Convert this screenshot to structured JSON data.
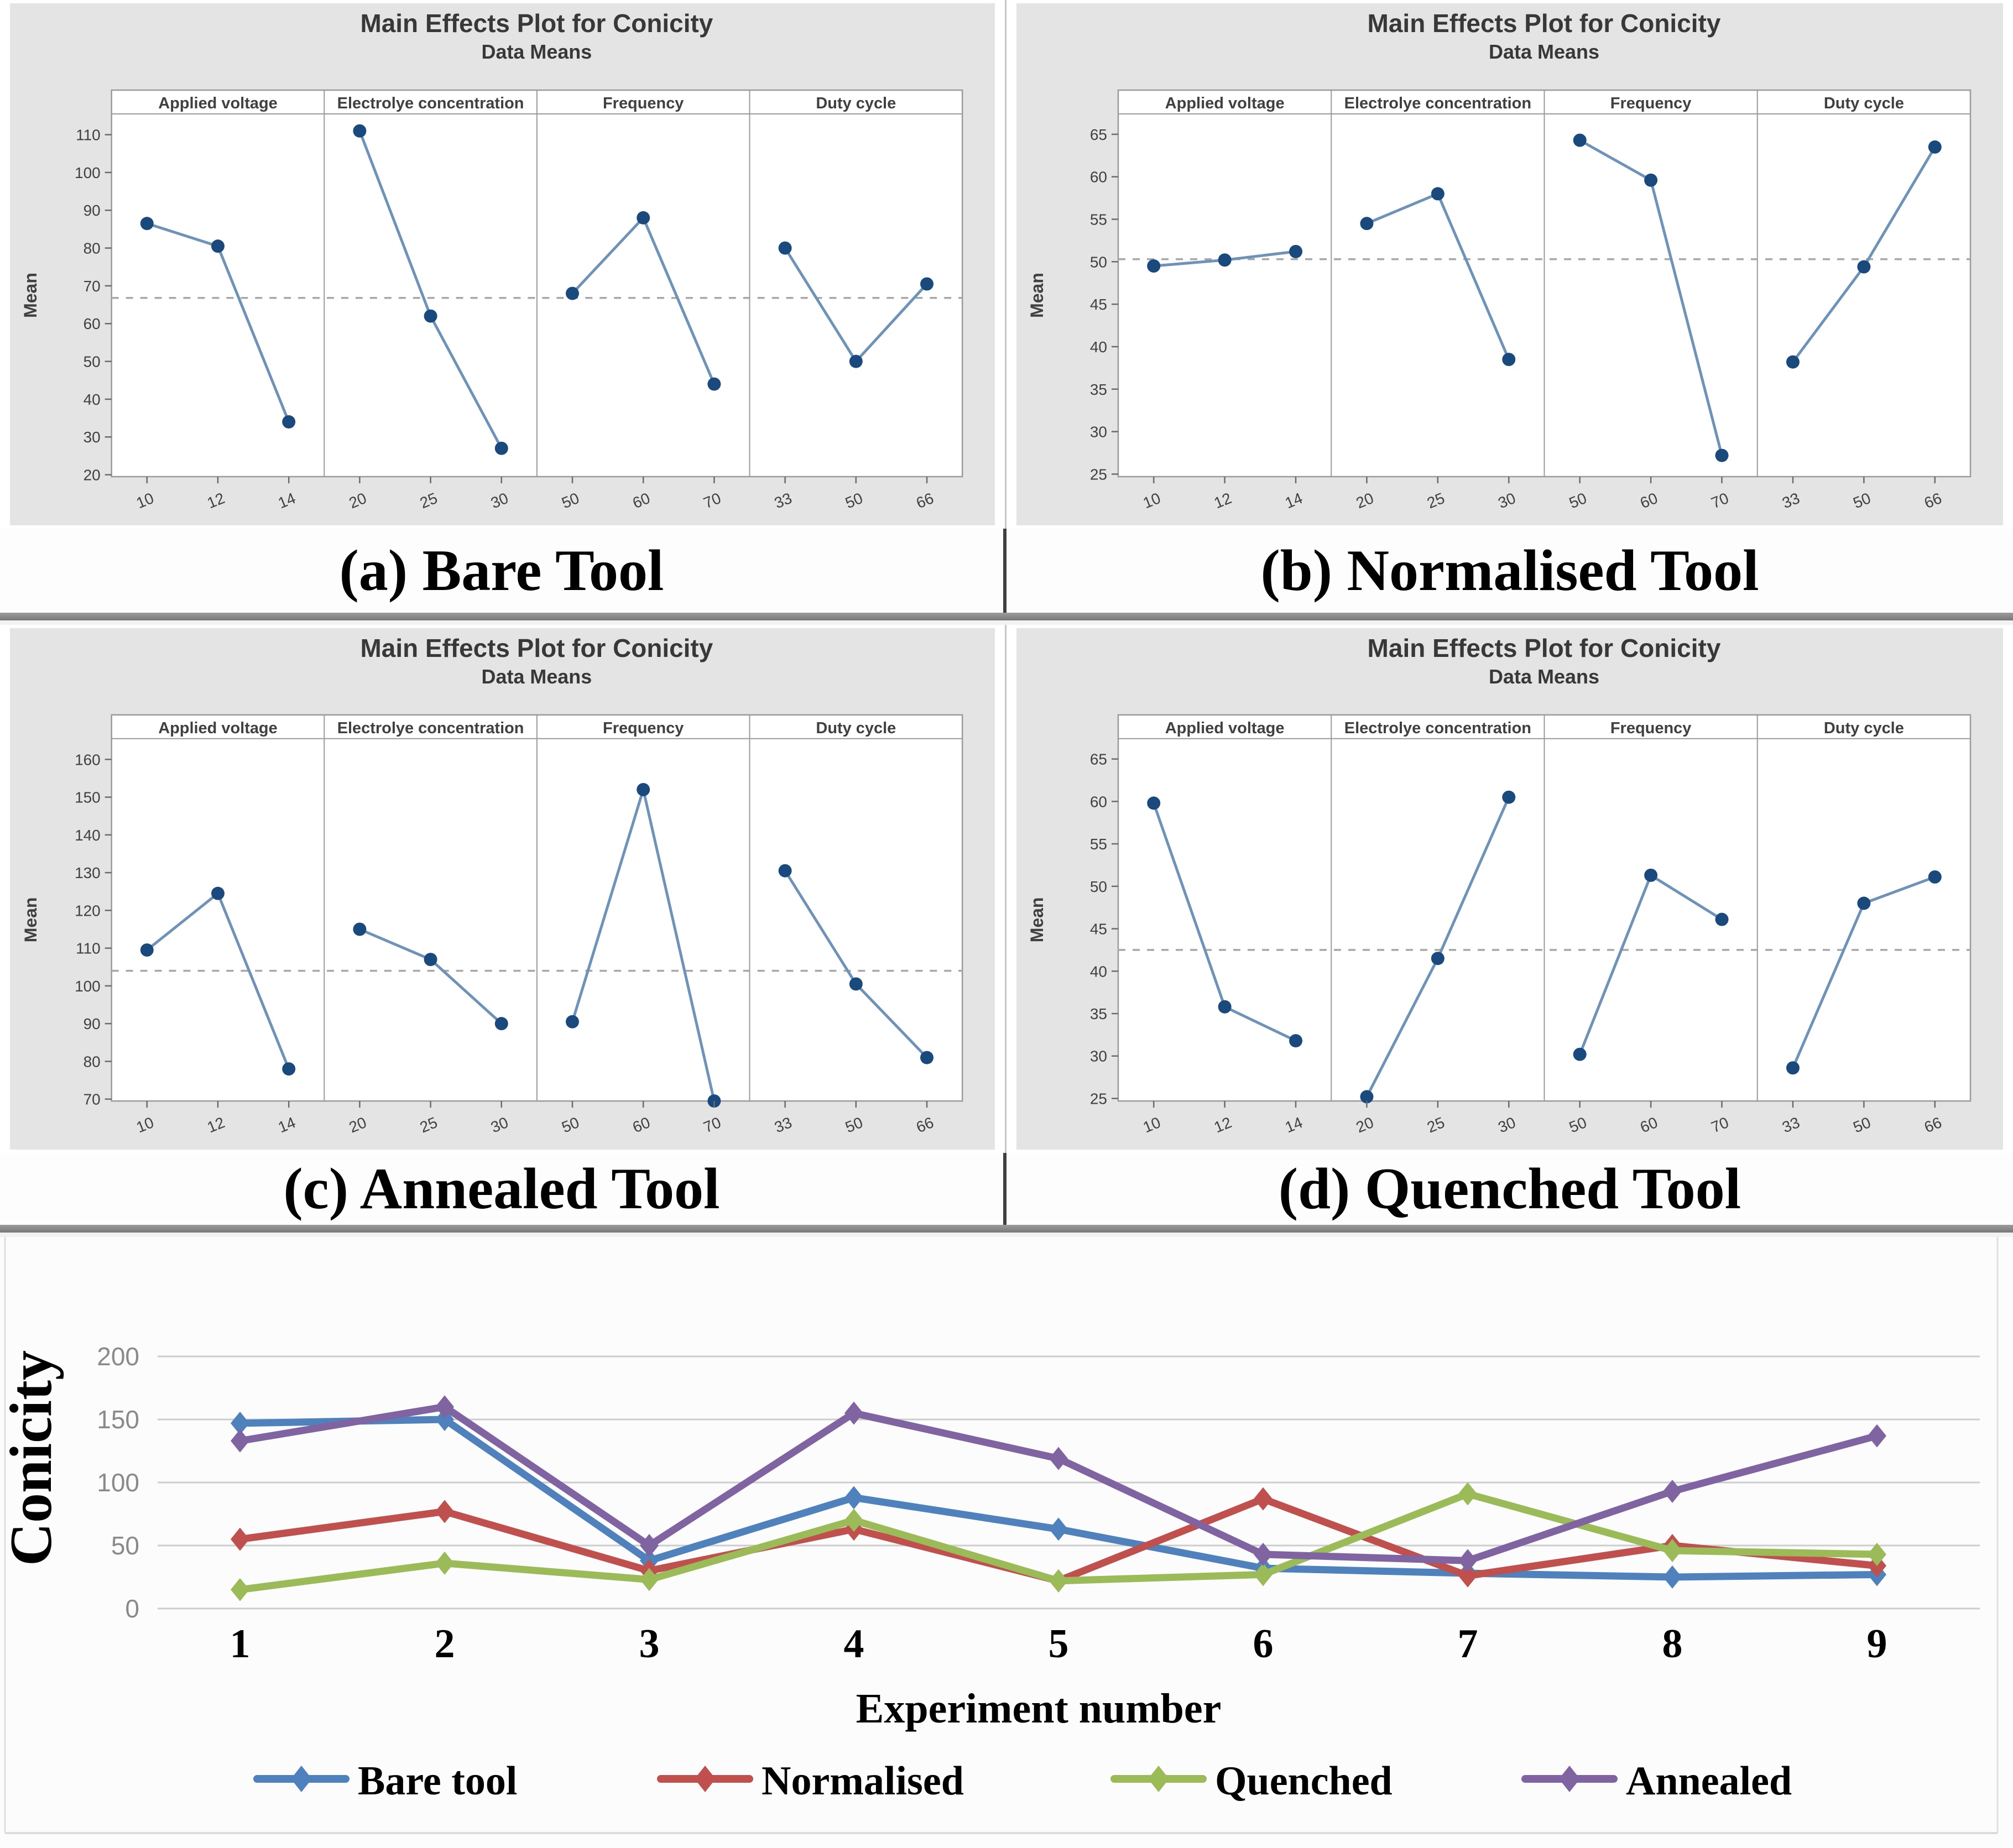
{
  "chart_data": [
    {
      "type": "main-effects-line",
      "id": "main-effects-bare",
      "caption": "(a) Bare Tool",
      "title": "Main Effects Plot for Conicity",
      "subtitle": "Data Means",
      "ylabel": "Mean",
      "ylim": [
        19.5,
        115.5
      ],
      "yticks": [
        20,
        30,
        40,
        50,
        60,
        70,
        80,
        90,
        100,
        110
      ],
      "mean_line": 66.8,
      "grid": "off",
      "point_color": "#1a4a7d",
      "line_color": "#6e93b8",
      "factors": [
        {
          "label": "Applied voltage",
          "levels": [
            "10",
            "12",
            "14"
          ],
          "values": [
            86.5,
            80.5,
            34
          ]
        },
        {
          "label": "Electrolye concentration",
          "levels": [
            "20",
            "25",
            "30"
          ],
          "values": [
            111,
            62,
            27
          ]
        },
        {
          "label": "Frequency",
          "levels": [
            "50",
            "60",
            "70"
          ],
          "values": [
            68,
            88,
            44
          ]
        },
        {
          "label": "Duty cycle",
          "levels": [
            "33",
            "50",
            "66"
          ],
          "values": [
            80,
            50,
            70.5
          ]
        }
      ]
    },
    {
      "type": "main-effects-line",
      "id": "main-effects-normalised",
      "caption": "(b) Normalised Tool",
      "title": "Main Effects Plot for Conicity",
      "subtitle": "Data Means",
      "ylabel": "Mean",
      "ylim": [
        24.7,
        67.4
      ],
      "yticks": [
        25,
        30,
        35,
        40,
        45,
        50,
        55,
        60,
        65
      ],
      "mean_line": 50.3,
      "grid": "off",
      "point_color": "#1a4a7d",
      "line_color": "#6e93b8",
      "factors": [
        {
          "label": "Applied voltage",
          "levels": [
            "10",
            "12",
            "14"
          ],
          "values": [
            49.5,
            50.2,
            51.2
          ]
        },
        {
          "label": "Electrolye concentration",
          "levels": [
            "20",
            "25",
            "30"
          ],
          "values": [
            54.5,
            58,
            38.5
          ]
        },
        {
          "label": "Frequency",
          "levels": [
            "50",
            "60",
            "70"
          ],
          "values": [
            64.3,
            59.6,
            27.2
          ]
        },
        {
          "label": "Duty cycle",
          "levels": [
            "33",
            "50",
            "66"
          ],
          "values": [
            38.2,
            49.4,
            63.5
          ]
        }
      ]
    },
    {
      "type": "main-effects-line",
      "id": "main-effects-annealed",
      "caption": "(c) Annealed Tool",
      "title": "Main Effects Plot for Conicity",
      "subtitle": "Data Means",
      "ylabel": "Mean",
      "ylim": [
        69.5,
        165.5
      ],
      "yticks": [
        70,
        80,
        90,
        100,
        110,
        120,
        130,
        140,
        150,
        160
      ],
      "mean_line": 104,
      "grid": "off",
      "point_color": "#1a4a7d",
      "line_color": "#6e93b8",
      "factors": [
        {
          "label": "Applied voltage",
          "levels": [
            "10",
            "12",
            "14"
          ],
          "values": [
            109.5,
            124.5,
            78
          ]
        },
        {
          "label": "Electrolye concentration",
          "levels": [
            "20",
            "25",
            "30"
          ],
          "values": [
            115,
            107,
            90
          ]
        },
        {
          "label": "Frequency",
          "levels": [
            "50",
            "60",
            "70"
          ],
          "values": [
            90.5,
            152,
            69.5
          ]
        },
        {
          "label": "Duty cycle",
          "levels": [
            "33",
            "50",
            "66"
          ],
          "values": [
            130.5,
            100.5,
            81
          ]
        }
      ]
    },
    {
      "type": "main-effects-line",
      "id": "main-effects-quenched",
      "caption": "(d) Quenched Tool",
      "title": "Main Effects Plot for Conicity",
      "subtitle": "Data Means",
      "ylabel": "Mean",
      "ylim": [
        24.7,
        67.4
      ],
      "yticks": [
        25,
        30,
        35,
        40,
        45,
        50,
        55,
        60,
        65
      ],
      "mean_line": 42.5,
      "grid": "off",
      "point_color": "#1a4a7d",
      "line_color": "#6e93b8",
      "factors": [
        {
          "label": "Applied voltage",
          "levels": [
            "10",
            "12",
            "14"
          ],
          "values": [
            59.8,
            35.8,
            31.8
          ]
        },
        {
          "label": "Electrolye concentration",
          "levels": [
            "20",
            "25",
            "30"
          ],
          "values": [
            25.2,
            41.5,
            60.5
          ]
        },
        {
          "label": "Frequency",
          "levels": [
            "50",
            "60",
            "70"
          ],
          "values": [
            30.2,
            51.3,
            46.1
          ]
        },
        {
          "label": "Duty cycle",
          "levels": [
            "33",
            "50",
            "66"
          ],
          "values": [
            28.6,
            48,
            51.1
          ]
        }
      ]
    },
    {
      "type": "line",
      "id": "conicity-by-experiment",
      "xlabel": "Experiment number",
      "ylabel": "Conicity",
      "categories": [
        "1",
        "2",
        "3",
        "4",
        "5",
        "6",
        "7",
        "8",
        "9"
      ],
      "ylim": [
        0,
        200
      ],
      "yticks": [
        0,
        50,
        100,
        150,
        200
      ],
      "grid": "horizontal",
      "legend_position": "bottom",
      "series": [
        {
          "name": "Bare tool",
          "color": "#4f81bd",
          "values": [
            147,
            150,
            38,
            88,
            63,
            32,
            28,
            25,
            27
          ]
        },
        {
          "name": "Normalised",
          "color": "#c0504d",
          "values": [
            55,
            77,
            30,
            63,
            22,
            87,
            26,
            50,
            34
          ]
        },
        {
          "name": "Quenched",
          "color": "#9bbb59",
          "values": [
            15,
            36,
            23,
            70,
            22,
            27,
            91,
            46,
            43
          ]
        },
        {
          "name": "Annealed",
          "color": "#8064a2",
          "values": [
            133,
            160,
            50,
            155,
            119,
            43,
            38,
            93,
            137
          ]
        }
      ]
    }
  ],
  "style": {
    "panel_bg": "#e4e4e4",
    "plot_bg": "#ffffff",
    "frame_color": "#9b9b9b",
    "dashed_ref_color": "#a8a8a8",
    "grid_color": "#cdcdcd",
    "axis_text_color": "#404040",
    "bottom_tick_color": "#8a8a8a"
  }
}
